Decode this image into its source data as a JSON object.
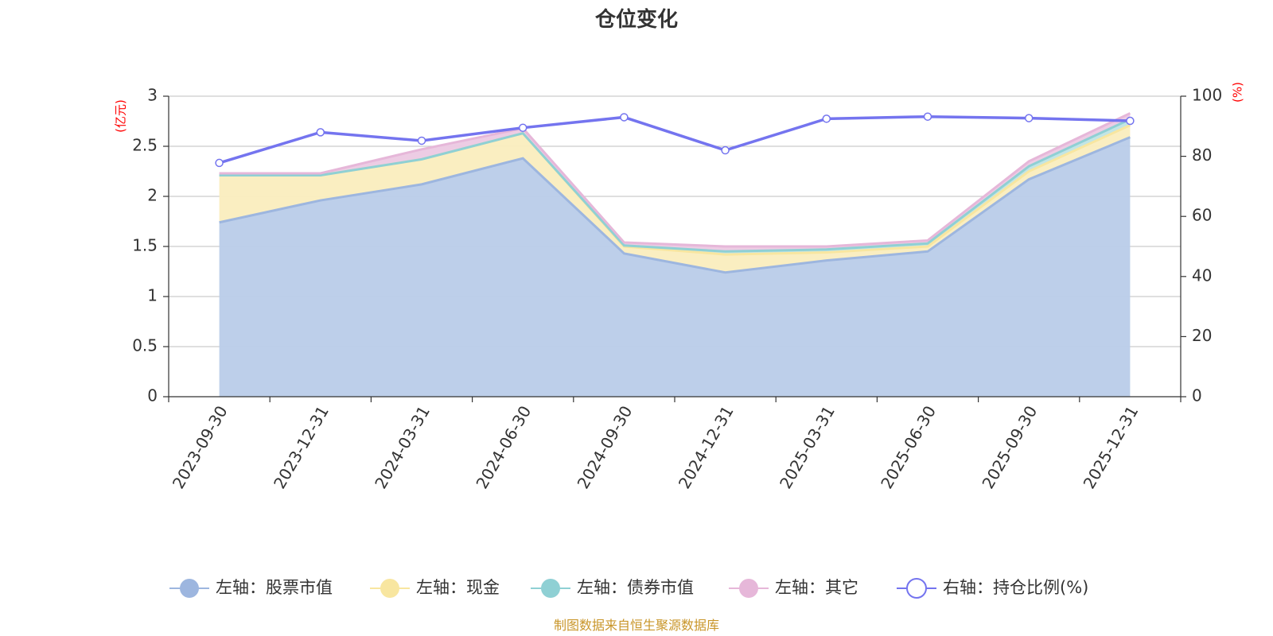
{
  "chart_data": {
    "type": "area",
    "title": "仓位变化",
    "source": "制图数据来自恒生聚源数据库",
    "x": [
      "2023-09-30",
      "2023-12-31",
      "2024-03-31",
      "2024-06-30",
      "2024-09-30",
      "2024-12-31",
      "2025-03-31",
      "2025-06-30",
      "2025-09-30",
      "2025-12-31"
    ],
    "left_axis": {
      "unit": "(亿元)",
      "min": 0,
      "max": 3,
      "ticks": [
        "0",
        "0.5",
        "1",
        "1.5",
        "2",
        "2.5",
        "3"
      ]
    },
    "right_axis": {
      "unit": "(%)",
      "min": 0,
      "max": 100,
      "ticks": [
        "0",
        "20",
        "40",
        "60",
        "80",
        "100"
      ]
    },
    "grid": true,
    "legend_position": "bottom",
    "series": [
      {
        "name": "左轴：股票市值",
        "axis": "left",
        "stacked": true,
        "color": "#9db6df",
        "fill": "#b9cce9",
        "values": [
          1.74,
          1.96,
          2.12,
          2.38,
          1.43,
          1.24,
          1.36,
          1.45,
          2.17,
          2.59
        ]
      },
      {
        "name": "左轴：现金",
        "axis": "left",
        "stacked": true,
        "color": "#f8e6a0",
        "fill": "#faedbe",
        "values": [
          0.47,
          0.25,
          0.25,
          0.25,
          0.07,
          0.18,
          0.08,
          0.05,
          0.08,
          0.12
        ]
      },
      {
        "name": "左轴：债券市值",
        "axis": "left",
        "stacked": true,
        "color": "#8fd0d4",
        "fill": "#bfe4e4",
        "values": [
          0.0,
          0.0,
          0.0,
          0.0,
          0.01,
          0.03,
          0.03,
          0.03,
          0.05,
          0.06
        ]
      },
      {
        "name": "左轴：其它",
        "axis": "left",
        "stacked": true,
        "color": "#e6b7d9",
        "fill": "#ecc9e3",
        "values": [
          0.02,
          0.02,
          0.1,
          0.05,
          0.03,
          0.05,
          0.03,
          0.03,
          0.05,
          0.06
        ]
      },
      {
        "name": "右轴：持仓比例(%)",
        "axis": "right",
        "stacked": false,
        "color": "#7474ef",
        "values": [
          77.8,
          88.0,
          85.2,
          89.5,
          93.0,
          82.0,
          92.5,
          93.2,
          92.7,
          91.8
        ]
      }
    ]
  }
}
